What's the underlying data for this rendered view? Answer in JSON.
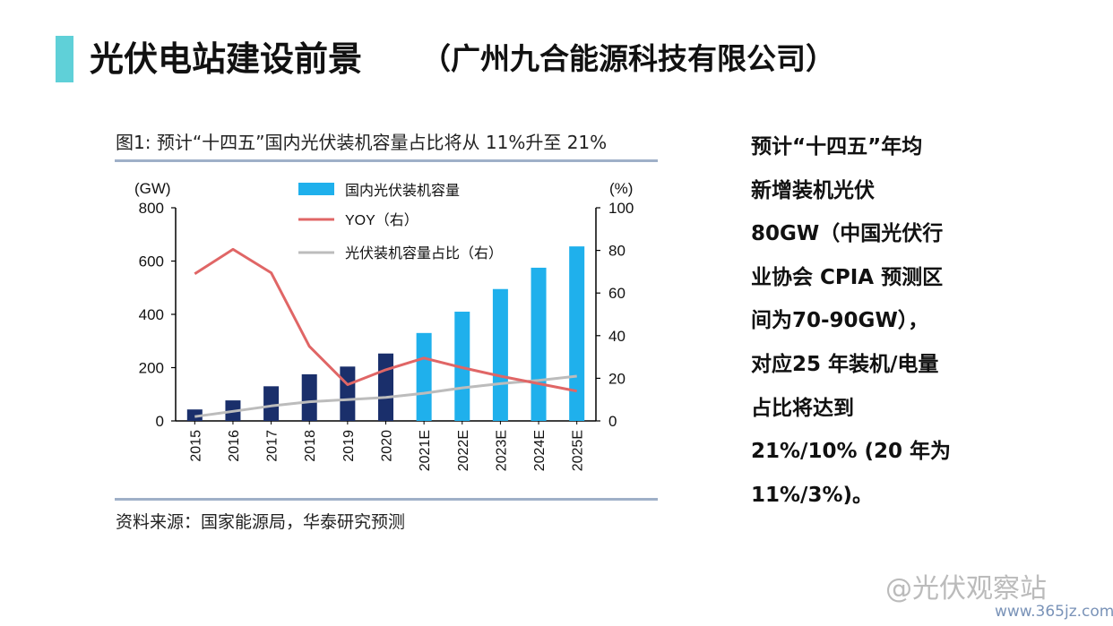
{
  "slide": {
    "title": "光伏电站建设前景",
    "subtitle": "（广州九合能源科技有限公司）"
  },
  "figure": {
    "caption": "图1: 预计“十四五”国内光伏装机容量占比将从 11%升至 21%",
    "source": "资料来源：国家能源局，华泰研究预测"
  },
  "side_text": {
    "lines": [
      "预计“十四五”年均",
      "新增装机光伏",
      "80GW（中国光伏行",
      "业协会 CPIA 预测区",
      "间为70-90GW），",
      "对应25 年装机/电量",
      "占比将达到",
      "21%/10% (20 年为",
      "11%/3%)。"
    ]
  },
  "watermark": {
    "text": "@光伏观察站",
    "url": "www.365jz.com"
  },
  "colors": {
    "accent": "#5fd0d8",
    "bar_actual": "#1a2f6b",
    "bar_forecast": "#1fb0ec",
    "yoy_line": "#e06666",
    "share_line": "#bcbcbc"
  },
  "chart_data": {
    "type": "bar",
    "categories": [
      "2015",
      "2016",
      "2017",
      "2018",
      "2019",
      "2020",
      "2021E",
      "2022E",
      "2023E",
      "2024E",
      "2025E"
    ],
    "series": [
      {
        "name": "国内光伏装机容量",
        "type": "bar",
        "axis": "left",
        "values": [
          43,
          77,
          130,
          175,
          204,
          253,
          330,
          410,
          495,
          575,
          655
        ]
      },
      {
        "name": "YOY（右）",
        "type": "line",
        "axis": "right",
        "values": [
          69,
          80.5,
          69.5,
          35,
          17,
          24,
          29.5,
          25,
          21,
          17.5,
          14
        ]
      },
      {
        "name": "光伏装机容量占比（右）",
        "type": "line",
        "axis": "right",
        "values": [
          2,
          4.5,
          7,
          9,
          10,
          11,
          13,
          15.5,
          17.5,
          19,
          21
        ]
      }
    ],
    "y_left": {
      "label": "(GW)",
      "ylim": [
        0,
        800
      ],
      "ticks": [
        0,
        200,
        400,
        600,
        800
      ]
    },
    "y_right": {
      "label": "(%)",
      "ylim": [
        0,
        100
      ],
      "ticks": [
        0,
        20,
        40,
        60,
        80,
        100
      ]
    },
    "forecast_from_index": 6,
    "legend_placement": "top-center",
    "grid": false
  }
}
